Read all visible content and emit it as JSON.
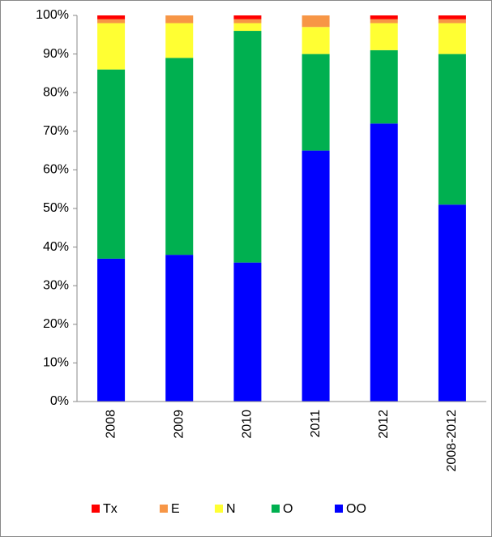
{
  "chart_data": {
    "type": "stacked_bar",
    "categories": [
      "2008",
      "2009",
      "2010",
      "2011",
      "2012",
      "2008-2012"
    ],
    "series": [
      {
        "name": "Tx",
        "color": "#ff0000",
        "values": [
          1,
          0,
          1,
          0,
          1,
          1
        ]
      },
      {
        "name": "E",
        "color": "#f79646",
        "values": [
          1,
          2,
          1,
          3,
          1,
          1
        ]
      },
      {
        "name": "N",
        "color": "#ffff33",
        "values": [
          12,
          9,
          2,
          7,
          7,
          8
        ]
      },
      {
        "name": "O",
        "color": "#00b050",
        "values": [
          49,
          51,
          60,
          25,
          19,
          39
        ]
      },
      {
        "name": "OO",
        "color": "#0000ff",
        "values": [
          37,
          38,
          36,
          65,
          72,
          51
        ]
      }
    ],
    "ylim": [
      0,
      100
    ],
    "yticks": [
      {
        "value": 0,
        "label": "0%"
      },
      {
        "value": 10,
        "label": "10%"
      },
      {
        "value": 20,
        "label": "20%"
      },
      {
        "value": 30,
        "label": "30%"
      },
      {
        "value": 40,
        "label": "40%"
      },
      {
        "value": 50,
        "label": "50%"
      },
      {
        "value": 60,
        "label": "60%"
      },
      {
        "value": 70,
        "label": "70%"
      },
      {
        "value": 80,
        "label": "80%"
      },
      {
        "value": 90,
        "label": "90%"
      },
      {
        "value": 100,
        "label": "100%"
      }
    ],
    "legend": "bottom",
    "grid": false
  }
}
